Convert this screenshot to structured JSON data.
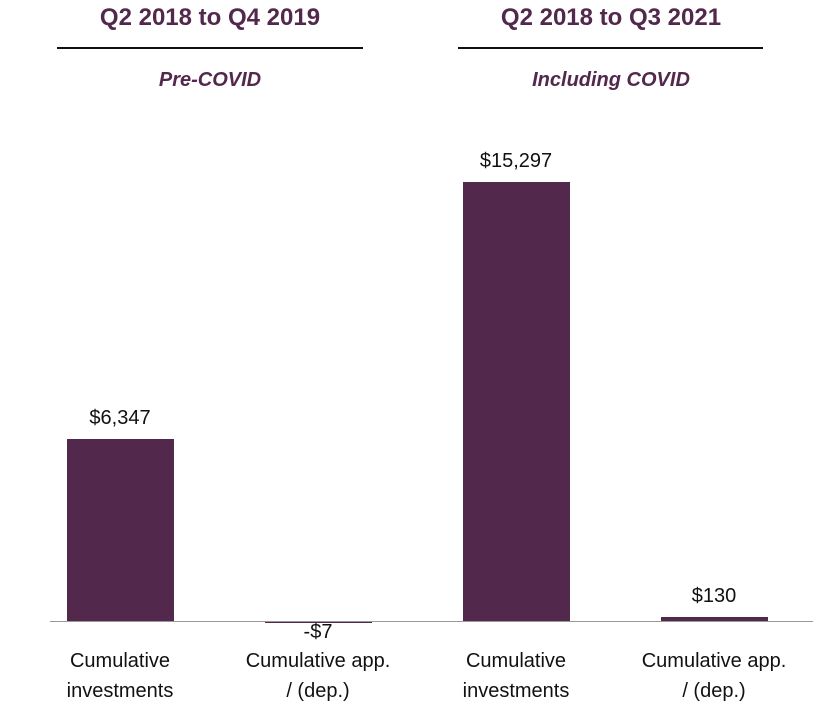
{
  "chart_data": {
    "type": "bar",
    "groups": [
      {
        "title": "Q2 2018 to Q4 2019",
        "subtitle": "Pre-COVID"
      },
      {
        "title": "Q2 2018 to Q3 2021",
        "subtitle": "Including COVID"
      }
    ],
    "categories": [
      "Cumulative investments",
      "Cumulative app. / (dep.)",
      "Cumulative investments",
      "Cumulative app. / (dep.)"
    ],
    "values": [
      6347,
      -7,
      15297,
      130
    ],
    "value_labels": [
      "$6,347",
      "-$7",
      "$15,297",
      "$130"
    ],
    "color": "#52284c"
  }
}
